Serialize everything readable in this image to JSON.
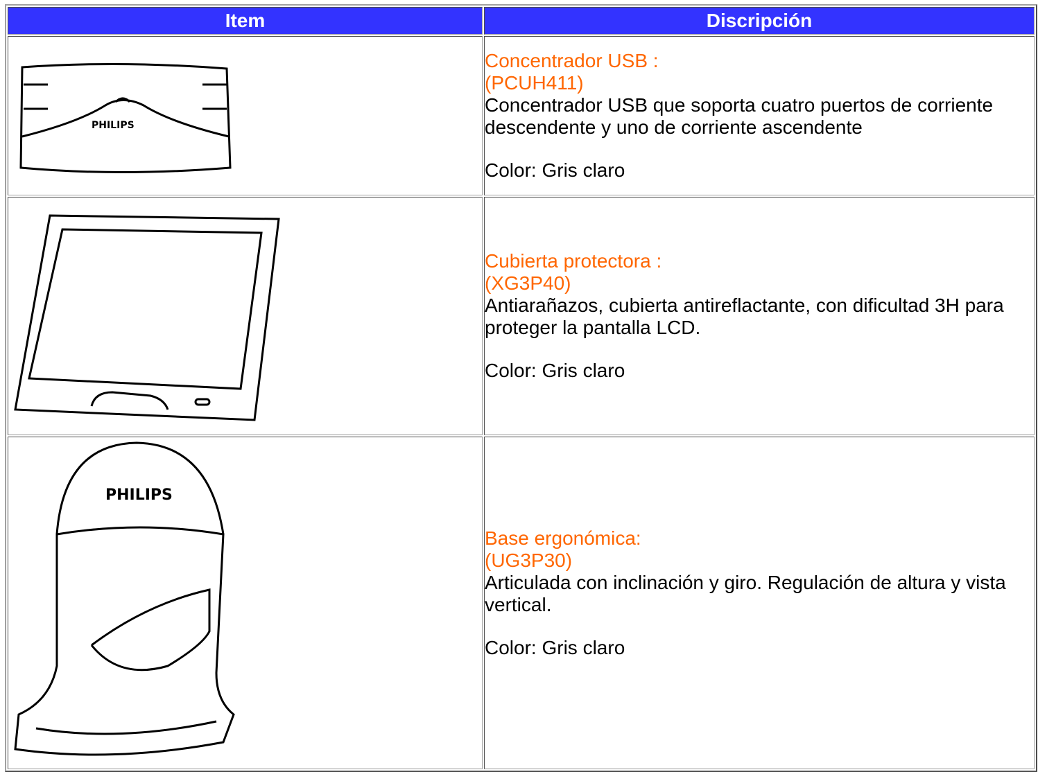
{
  "table": {
    "header": [
      "Item",
      "Discripción"
    ],
    "rows": [
      {
        "image_label": "PHILIPS",
        "name": "Concentrador USB :",
        "code": "(PCUH411)",
        "description": "Concentrador USB que soporta cuatro puertos de corriente descendente y uno de corriente ascendente",
        "color": "Color: Gris claro"
      },
      {
        "name": "Cubierta protectora :",
        "code": "(XG3P40)",
        "description": "Antiarañazos, cubierta antireflactante, con dificultad 3H para proteger la pantalla LCD.",
        "color": "Color: Gris claro"
      },
      {
        "image_label": "PHILIPS",
        "name": "Base ergonómica:",
        "code": "(UG3P30)",
        "description": "Articulada con inclinación y giro. Regulación de altura y vista vertical.",
        "color": "Color: Gris claro"
      }
    ]
  }
}
